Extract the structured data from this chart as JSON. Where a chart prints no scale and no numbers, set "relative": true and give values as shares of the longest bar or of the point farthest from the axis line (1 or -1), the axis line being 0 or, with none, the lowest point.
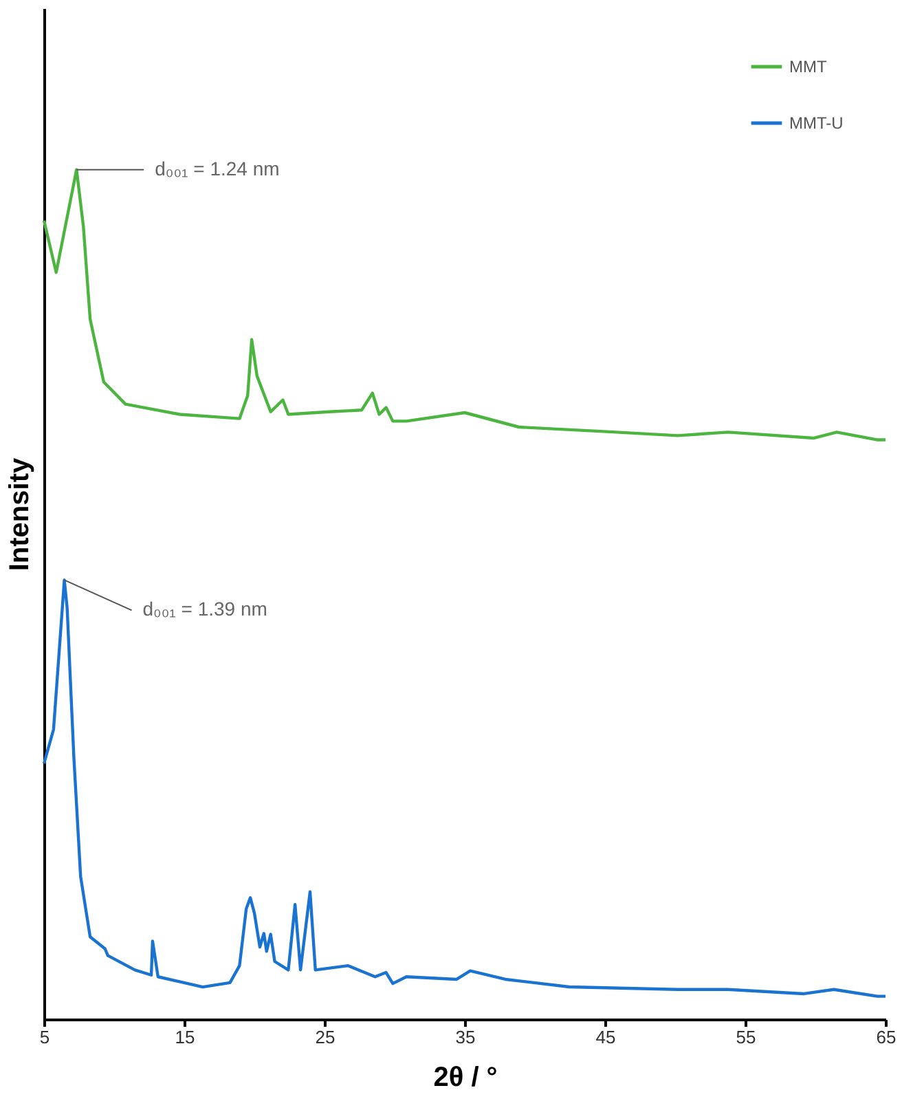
{
  "chart_data": {
    "type": "line",
    "relative": true,
    "xlabel": "2θ / °",
    "ylabel": "Intensity",
    "xlim": [
      5,
      65
    ],
    "xticks": [
      5,
      15,
      25,
      35,
      45,
      55,
      65
    ],
    "tick_labels": "x",
    "grid": false,
    "legend": "top right",
    "marker": "none",
    "line_style": "solid",
    "series": [
      {
        "name": "MMT",
        "color": "#4cb540",
        "x": [
          5.0,
          5.87,
          7.32,
          7.81,
          8.29,
          9.26,
          10.81,
          14.68,
          18.94,
          19.52,
          19.81,
          20.19,
          21.16,
          22.03,
          22.42,
          25.32,
          27.65,
          28.42,
          28.9,
          29.39,
          29.87,
          30.84,
          35.0,
          38.87,
          44.68,
          50.19,
          53.77,
          59.87,
          61.52,
          64.42,
          65.0
        ],
        "values": [
          0.94,
          0.879,
          1.0,
          0.933,
          0.824,
          0.75,
          0.724,
          0.712,
          0.707,
          0.734,
          0.8,
          0.757,
          0.715,
          0.729,
          0.712,
          0.715,
          0.717,
          0.737,
          0.712,
          0.72,
          0.704,
          0.704,
          0.714,
          0.697,
          0.692,
          0.687,
          0.691,
          0.684,
          0.691,
          0.682,
          0.682
        ]
      },
      {
        "name": "MMT-U",
        "color": "#1a73d0",
        "x": [
          5.0,
          5.68,
          6.45,
          6.65,
          7.13,
          7.61,
          8.29,
          9.35,
          9.55,
          11.48,
          12.65,
          12.74,
          13.13,
          16.32,
          18.26,
          18.94,
          19.42,
          19.71,
          20.0,
          20.39,
          20.68,
          20.87,
          21.16,
          21.45,
          22.42,
          22.9,
          23.29,
          23.97,
          24.35,
          26.68,
          28.61,
          29.39,
          29.87,
          30.84,
          34.42,
          35.39,
          37.9,
          42.45,
          50.19,
          53.77,
          59.19,
          61.32,
          64.42,
          65.0
        ],
        "values": [
          0.301,
          0.341,
          0.517,
          0.484,
          0.308,
          0.168,
          0.097,
          0.083,
          0.075,
          0.058,
          0.052,
          0.092,
          0.05,
          0.038,
          0.043,
          0.063,
          0.13,
          0.143,
          0.125,
          0.085,
          0.101,
          0.08,
          0.1,
          0.068,
          0.058,
          0.135,
          0.058,
          0.15,
          0.058,
          0.063,
          0.05,
          0.055,
          0.042,
          0.05,
          0.047,
          0.057,
          0.047,
          0.038,
          0.035,
          0.035,
          0.03,
          0.035,
          0.027,
          0.027
        ]
      }
    ],
    "annotations": [
      {
        "text": "d₀₀₁ = 1.24 nm",
        "x": 7.32,
        "y": 1.0
      },
      {
        "text": "d₀₀₁ = 1.39 nm",
        "x": 6.45,
        "y": 0.517
      }
    ]
  }
}
